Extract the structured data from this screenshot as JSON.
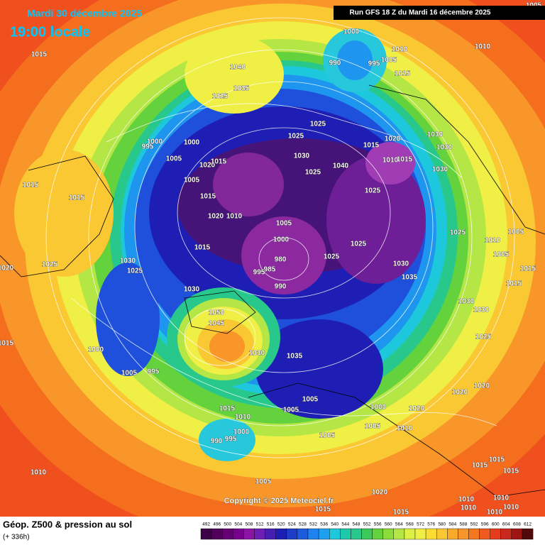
{
  "header": {
    "date": "Mardi 30 décembre 2025",
    "time": "19:00 locale",
    "run": "Run GFS 18 Z du Mardi 16 décembre 2025"
  },
  "copyright": "Copyright © 2025 Meteociel.fr",
  "footer": {
    "title": "Géop. Z500 & pression au sol",
    "lead": "(+ 336h)"
  },
  "legend": {
    "values": [
      492,
      496,
      500,
      504,
      508,
      512,
      516,
      520,
      524,
      528,
      532,
      536,
      540,
      544,
      548,
      552,
      556,
      560,
      564,
      568,
      572,
      576,
      580,
      584,
      588,
      592,
      596,
      600,
      604,
      608,
      612
    ]
  },
  "isobar_labels": [
    "1005",
    "1000",
    "1010",
    "1010",
    "1015",
    "1040",
    "990",
    "995",
    "1005",
    "1015",
    "1035",
    "1025",
    "1025",
    "1025",
    "1015",
    "1020",
    "1030",
    "1030",
    "1000",
    "995",
    "1000",
    "1005",
    "1020",
    "1015",
    "1030",
    "1040",
    "1015",
    "1010",
    "1030",
    "1025",
    "1015",
    "1015",
    "1005",
    "1015",
    "1025",
    "1020",
    "1010",
    "1005",
    "1025",
    "1010",
    "1005",
    "1000",
    "1015",
    "1025",
    "1005",
    "1025",
    "980",
    "1030",
    "1025",
    "1020",
    "985",
    "995",
    "1025",
    "1030",
    "1015",
    "1035",
    "990",
    "1030",
    "1015",
    "1030",
    "1030",
    "1050",
    "1045",
    "1025",
    "1015",
    "1000",
    "1030",
    "1035",
    "1005",
    "995",
    "1020",
    "1020",
    "1005",
    "1005",
    "1000",
    "1020",
    "1015",
    "1010",
    "1005",
    "1010",
    "1000",
    "995",
    "990",
    "1005",
    "1015",
    "1015",
    "1015",
    "1010",
    "1005",
    "1020",
    "1010",
    "1010",
    "1015",
    "1010",
    "1010",
    "1015",
    "1010"
  ]
}
